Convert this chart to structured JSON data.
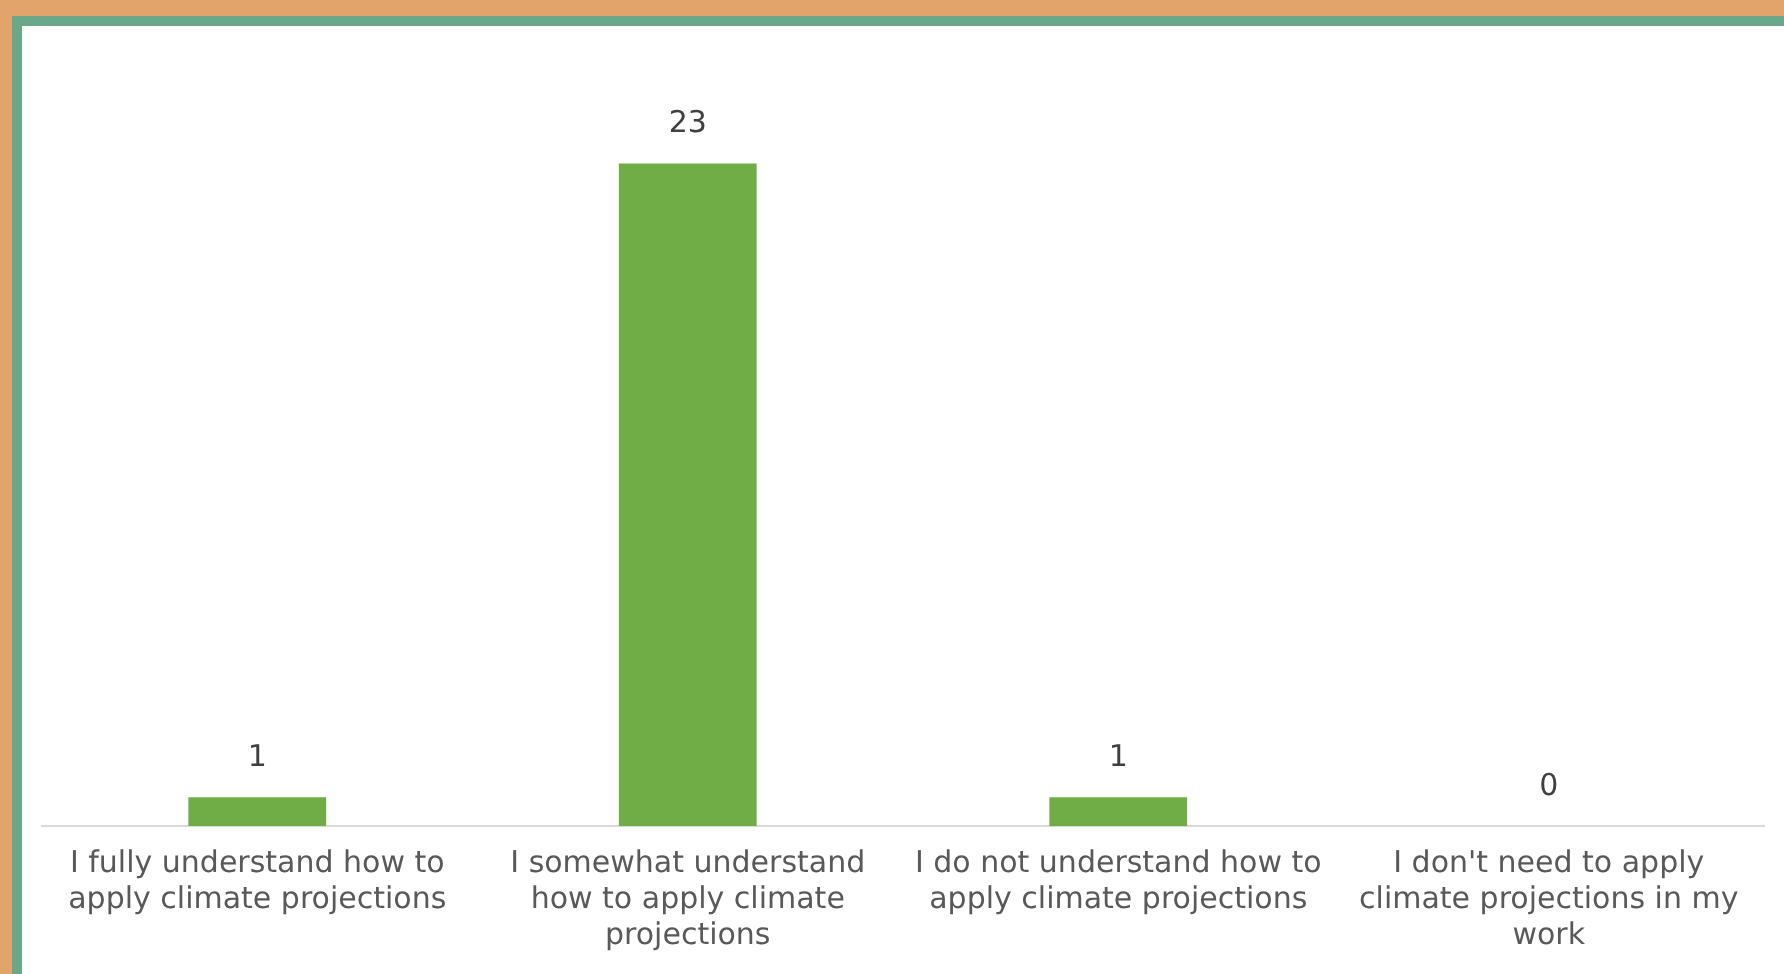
{
  "chart_data": {
    "type": "bar",
    "categories": [
      "I fully understand how to apply climate projections",
      "I somewhat understand how to apply climate projections",
      "I do not understand how to apply climate projections",
      "I don't need to apply climate projections in my work"
    ],
    "values": [
      1,
      23,
      1,
      0
    ],
    "color": "#70ad47",
    "data_labels": true,
    "grid": false,
    "legend": false
  }
}
